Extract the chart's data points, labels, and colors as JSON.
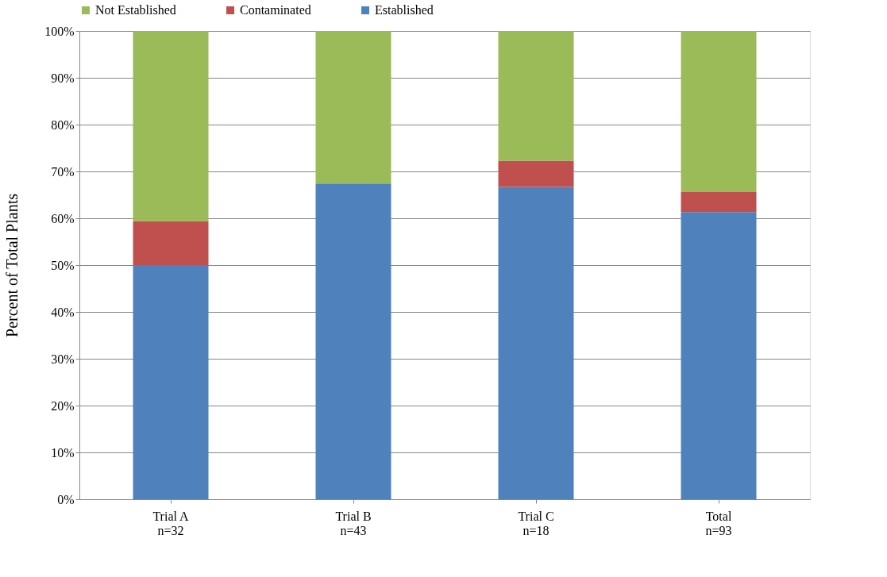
{
  "chart_data": {
    "type": "bar",
    "stacked": true,
    "ylabel": "Percent of Total Plants",
    "categories": [
      "Trial A\nn=32",
      "Trial B\nn=43",
      "Trial C\nn=18",
      "Total\nn=93"
    ],
    "series": [
      {
        "name": "Established",
        "color": "#4f81bd",
        "values": [
          50.0,
          67.4,
          66.7,
          61.3
        ]
      },
      {
        "name": "Contaminated",
        "color": "#c0504d",
        "values": [
          9.4,
          0,
          5.6,
          4.3
        ]
      },
      {
        "name": "Not Established",
        "color": "#9bbb59",
        "values": [
          40.6,
          32.6,
          27.7,
          34.4
        ]
      }
    ],
    "ylim": [
      0,
      100
    ],
    "yticks": [
      {
        "value": 0,
        "label": "0%"
      },
      {
        "value": 10,
        "label": "10%"
      },
      {
        "value": 20,
        "label": "20%"
      },
      {
        "value": 30,
        "label": "30%"
      },
      {
        "value": 40,
        "label": "40%"
      },
      {
        "value": 50,
        "label": "50%"
      },
      {
        "value": 60,
        "label": "60%"
      },
      {
        "value": 70,
        "label": "70%"
      },
      {
        "value": 80,
        "label": "80%"
      },
      {
        "value": 90,
        "label": "90%"
      },
      {
        "value": 100,
        "label": "100%"
      }
    ],
    "grid": "y",
    "legend": "top"
  }
}
